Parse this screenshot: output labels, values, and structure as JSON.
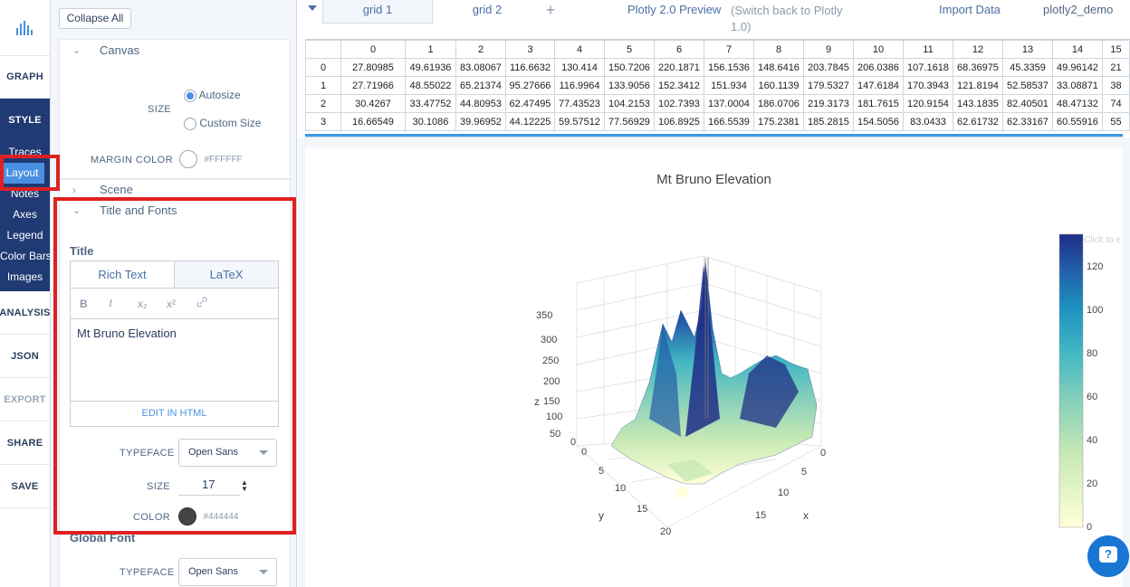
{
  "nav": {
    "graph": "GRAPH",
    "style": "STYLE",
    "style_items": [
      "Traces",
      "Layout",
      "Notes",
      "Axes",
      "Legend",
      "Color Bars",
      "Images"
    ],
    "analysis": "ANALYSIS",
    "json": "JSON",
    "export": "EXPORT",
    "share": "SHARE",
    "save": "SAVE"
  },
  "panel": {
    "collapse_all": "Collapse All",
    "canvas": {
      "title": "Canvas",
      "size_label": "SIZE",
      "autosize": "Autosize",
      "custom_size": "Custom Size",
      "margin_color_label": "MARGIN COLOR",
      "margin_color": "#FFFFFF"
    },
    "scene": "Scene",
    "title_fonts": {
      "title": "Title and Fonts",
      "title_label": "Title",
      "tab_rich": "Rich Text",
      "tab_latex": "LaTeX",
      "toolbar": [
        "B",
        "I",
        "x₂",
        "x²",
        "🔗"
      ],
      "text": "Mt Bruno Elevation",
      "edit_html": "EDIT IN HTML",
      "typeface_label": "TYPEFACE",
      "typeface": "Open Sans",
      "size_label": "SIZE",
      "size": "17",
      "color_label": "COLOR",
      "color": "#444444"
    },
    "global_font": {
      "title": "Global Font",
      "typeface_label": "TYPEFACE",
      "typeface": "Open Sans"
    }
  },
  "topbar": {
    "grid1": "grid 1",
    "grid2": "grid 2",
    "add": "+",
    "preview": "Plotly 2.0 Preview",
    "switch_back": "(Switch back to Plotly 1.0)",
    "import": "Import Data",
    "user": "plotly2_demo"
  },
  "grid": {
    "columns": [
      "0",
      "1",
      "2",
      "3",
      "4",
      "5",
      "6",
      "7",
      "8",
      "9",
      "10",
      "11",
      "12",
      "13",
      "14",
      "15"
    ],
    "rows": [
      {
        "index": "0",
        "cells": [
          "27.80985",
          "49.61936",
          "83.08067",
          "116.6632",
          "130.414",
          "150.7206",
          "220.1871",
          "156.1536",
          "148.6416",
          "203.7845",
          "206.0386",
          "107.1618",
          "68.36975",
          "45.3359",
          "49.96142",
          "21"
        ]
      },
      {
        "index": "1",
        "cells": [
          "27.71966",
          "48.55022",
          "65.21374",
          "95.27666",
          "116.9964",
          "133.9056",
          "152.3412",
          "151.934",
          "160.1139",
          "179.5327",
          "147.6184",
          "170.3943",
          "121.8194",
          "52.58537",
          "33.08871",
          "38"
        ]
      },
      {
        "index": "2",
        "cells": [
          "30.4267",
          "33.47752",
          "44.80953",
          "62.47495",
          "77.43523",
          "104.2153",
          "102.7393",
          "137.0004",
          "186.0706",
          "219.3173",
          "181.7615",
          "120.9154",
          "143.1835",
          "82.40501",
          "48.47132",
          "74"
        ]
      },
      {
        "index": "3",
        "cells": [
          "16.66549",
          "30.1086",
          "39.96952",
          "44.12225",
          "59.57512",
          "77.56929",
          "106.8925",
          "166.5539",
          "175.2381",
          "185.2815",
          "154.5056",
          "83.0433",
          "62.61732",
          "62.33167",
          "60.55916",
          "55"
        ]
      }
    ]
  },
  "chart": {
    "title": "Mt Bruno Elevation",
    "z_label": "z",
    "y_label": "y",
    "x_label": "x",
    "z_ticks": [
      "350",
      "300",
      "250",
      "200",
      "150",
      "100",
      "50",
      "0"
    ],
    "y_ticks": [
      "0",
      "5",
      "10",
      "15",
      "20"
    ],
    "x_ticks": [
      "0",
      "5",
      "10",
      "15"
    ],
    "colorbar_ticks": [
      "120",
      "100",
      "80",
      "60",
      "40",
      "20",
      "0"
    ],
    "colorbar_placeholder": "Click to enter",
    "colors": {
      "high": "#1f2d86",
      "mid": "#2a8bbf",
      "low": "#ffffd9"
    }
  },
  "help_icon": "?"
}
